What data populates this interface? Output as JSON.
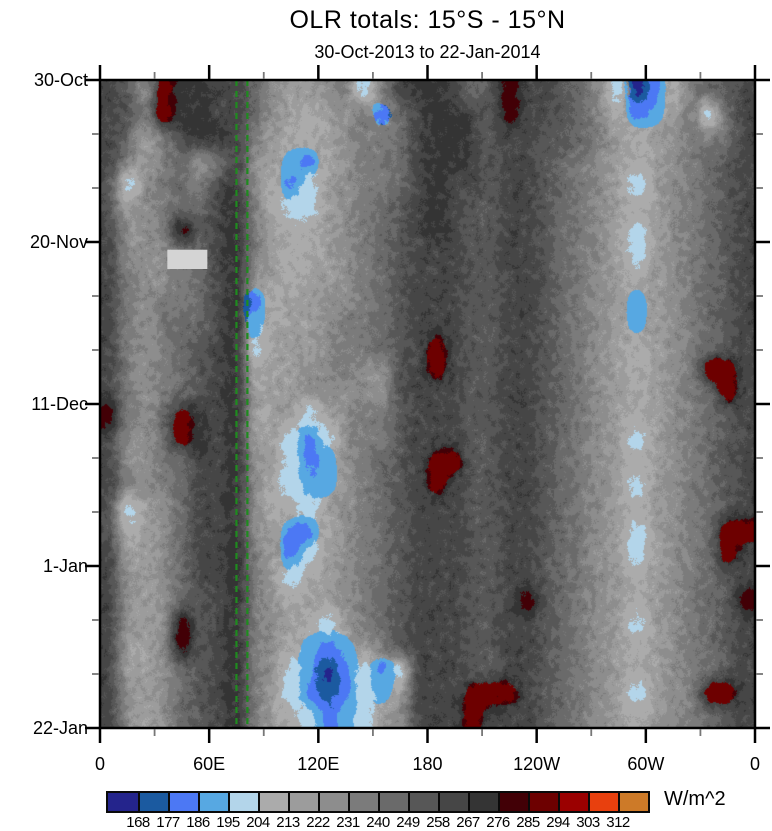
{
  "chart_data": {
    "type": "heatmap",
    "variant": "hovmoller-time-longitude-filled-contours",
    "title": "OLR totals: 15°S - 15°N",
    "subtitle": "30-Oct-2013 to 22-Jan-2014",
    "units": "W/m^2",
    "x_axis": {
      "label": "",
      "range_deg": [
        0,
        360
      ],
      "tick_lons": [
        0,
        60,
        120,
        180,
        240,
        300,
        360
      ],
      "tick_labels": [
        "0",
        "60E",
        "120E",
        "180",
        "120W",
        "60W",
        "0"
      ],
      "minor_tick_step_deg": 30
    },
    "y_axis": {
      "start_date": "30-Oct-2013",
      "end_date": "22-Jan-2014",
      "range_days": [
        0,
        84
      ],
      "tick_days": [
        0,
        21,
        42,
        63,
        84
      ],
      "tick_labels": [
        "30-Oct",
        "20-Nov",
        "11-Dec",
        "1-Jan",
        "22-Jan"
      ],
      "minor_tick_step_days": 7
    },
    "levels": [
      168,
      177,
      186,
      195,
      204,
      213,
      222,
      231,
      240,
      249,
      258,
      267,
      276,
      285,
      294,
      303,
      312
    ],
    "level_colors": [
      "#24248c",
      "#1b5aa0",
      "#4c78f4",
      "#57a8e2",
      "#b3d5ea",
      "#ababab",
      "#9c9c9c",
      "#8d8d8d",
      "#7b7b7b",
      "#6a6a6a",
      "#575757",
      "#464646",
      "#343434",
      "#420006",
      "#6d0000",
      "#9b0000",
      "#e8400e",
      "#cd7a28"
    ],
    "grid_note": "Coarse 36x28 field (10 deg lon x 3 day cells), row 0 = 30-Oct top. Each char indexes a 9 W/m^2 OLR bin via char_map: bin 0 = <168 (deep convection, blue) up to bin 17 = >312 (clear/dry, orange).",
    "char_map": "0123456789abcdefgh",
    "grid_cols": 36,
    "grid_rows_count": 28,
    "grid_rows": [
      "ba7eccbb97667848bccb9adbba97402589ab",
      "ba8eccbb976567829bccbadbba975236849b",
      "b968bccb865567889bccbabbaa986567889b",
      "b868978b763257889bccbabba987656789ab",
      "a47898bb752467889bcbbabba987646789ab",
      "a67899bc85446789abcbaabba987656789ab",
      "b778dabc86556789abcbaabba987646789ab",
      "b77789bc86556789abbbaabba987646789ab",
      "b87789bc76566789abbbaabba987656789ab",
      "b87889bc25667789abbbaabba987636789ab",
      "b87899bc35667889abbbaabba987636789ab",
      "b8789abc46667889abebaabba987656789ab",
      "b8789abc56677877abebaabba98765678eeb",
      "b8789abc66677777abbbaabba987656789eb",
      "d879ecbc66646788abbbaabba987656789ab",
      "b779ecbc66424788abbbaabba987646789ab",
      "b7789bbc76423789abeeaabba987656789ab",
      "b8789bbc75433689abebaabba987646789ab",
      "a4679bbc75546789abbbaabba987656789ab",
      "a5679bbc76225789abbbaabba987646789ee",
      "b6679bbc86246789abbbaabba987646789eb",
      "b7679bbc86456789abbbaabba987656789ab",
      "b7679abc87566789abbbaabda987656789ad",
      "b767dabc87654689abbbaabba987646789ab",
      "b667dabc87532368abbbaabba987656789ab",
      "b6679abc874302424bbbaabba987656789ab",
      "b7679abc864212436bbbeeeba98764678eeb",
      "b7679abc865423467bbbebbba987656789ab"
    ],
    "reference_lines": {
      "color": "#1e8c1e",
      "style": "dashed",
      "lons": [
        75,
        81
      ]
    },
    "missing_data_patch": {
      "lon_range": [
        37,
        59
      ],
      "day_range": [
        22,
        24.5
      ],
      "color": "#d4d4d4"
    }
  }
}
